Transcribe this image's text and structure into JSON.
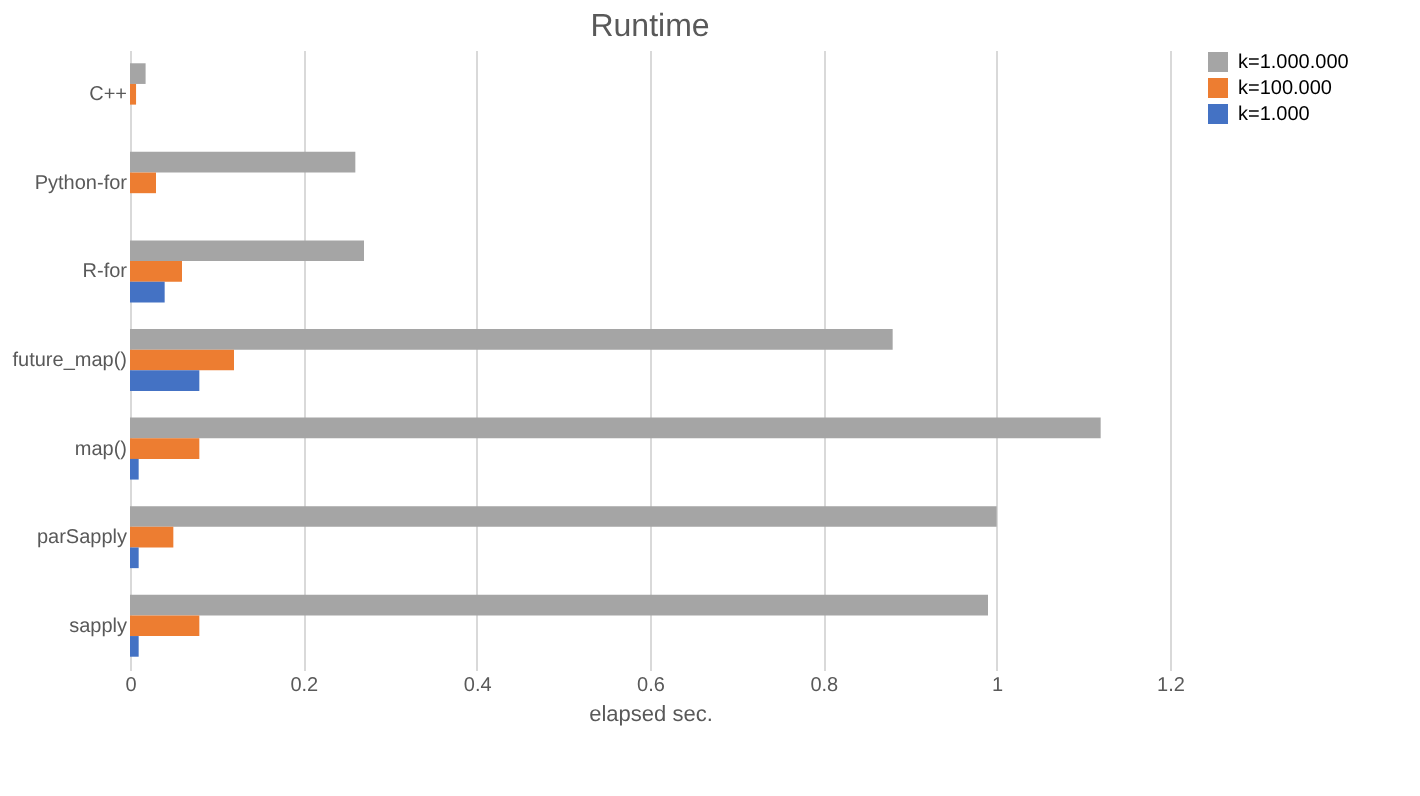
{
  "chart_data": {
    "type": "bar",
    "orientation": "horizontal",
    "title": "Runtime",
    "xlabel": "elapsed sec.",
    "categories": [
      "C++",
      "Python-for",
      "R-for",
      "future_map()",
      "map()",
      "parSapply",
      "sapply"
    ],
    "series": [
      {
        "name": "k=1.000.000",
        "color": "#a5a5a5",
        "values": [
          0.018,
          0.26,
          0.27,
          0.88,
          1.12,
          1.0,
          0.99
        ]
      },
      {
        "name": "k=100.000",
        "color": "#ed7d31",
        "values": [
          0.007,
          0.03,
          0.06,
          0.12,
          0.08,
          0.05,
          0.08
        ]
      },
      {
        "name": "k=1.000",
        "color": "#4472c4",
        "values": [
          0,
          0,
          0.04,
          0.08,
          0.01,
          0.01,
          0.01
        ]
      }
    ],
    "xlim": [
      0,
      1.2
    ],
    "xticks": [
      0,
      0.2,
      0.4,
      0.6,
      0.8,
      1,
      1.2
    ],
    "grid": "x",
    "legend": "right"
  }
}
